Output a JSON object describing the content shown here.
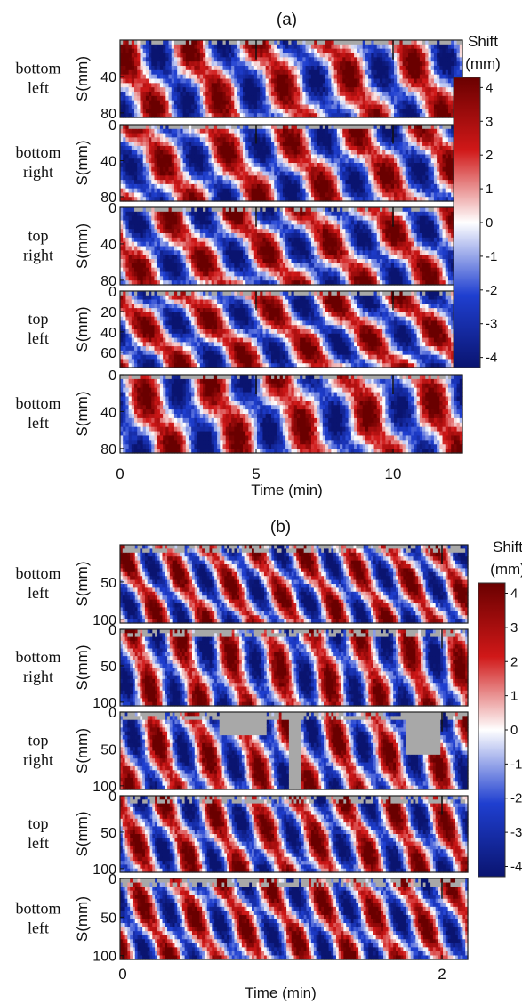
{
  "figure": {
    "panels": [
      {
        "label": "(a)",
        "xlabel": "Time (min)",
        "ylabel": "S(mm)",
        "xticks": [
          "0",
          "5",
          "10"
        ],
        "xlim": [
          0,
          12.5
        ],
        "colorbar": {
          "title_line1": "Shift",
          "title_line2": "(mm)",
          "range": [
            -4.3,
            4.3
          ],
          "ticks": [
            "4",
            "3",
            "2",
            "1",
            "0",
            "-1",
            "-2",
            "-3",
            "-4"
          ]
        },
        "rows": [
          {
            "label1": "bottom",
            "label2": "left",
            "yticks": [
              "40",
              "80"
            ],
            "ylim": [
              0,
              85
            ]
          },
          {
            "label1": "bottom",
            "label2": "right",
            "yticks": [
              "0",
              "40",
              "80"
            ],
            "ylim": [
              0,
              85
            ]
          },
          {
            "label1": "top",
            "label2": "right",
            "yticks": [
              "0",
              "40",
              "80"
            ],
            "ylim": [
              0,
              85
            ]
          },
          {
            "label1": "top",
            "label2": "left",
            "yticks": [
              "0",
              "20",
              "40",
              "60"
            ],
            "ylim": [
              0,
              75
            ]
          },
          {
            "label1": "bottom",
            "label2": "left",
            "yticks": [
              "0",
              "40",
              "80"
            ],
            "ylim": [
              0,
              85
            ]
          }
        ]
      },
      {
        "label": "(b)",
        "xlabel": "Time (min)",
        "ylabel": "S(mm)",
        "xticks": [
          "0",
          "2"
        ],
        "xlim": [
          0,
          2.15
        ],
        "colorbar": {
          "title_line1": "Shift",
          "title_line2": "(mm)",
          "range": [
            -4.3,
            4.3
          ],
          "ticks": [
            "4",
            "3",
            "2",
            "1",
            "0",
            "-1",
            "-2",
            "-3",
            "-4"
          ]
        },
        "rows": [
          {
            "label1": "bottom",
            "label2": "left",
            "yticks": [
              "50",
              "100"
            ],
            "ylim": [
              0,
              105
            ]
          },
          {
            "label1": "bottom",
            "label2": "right",
            "yticks": [
              "0",
              "50",
              "100"
            ],
            "ylim": [
              0,
              105
            ]
          },
          {
            "label1": "top",
            "label2": "right",
            "yticks": [
              "0",
              "50",
              "100"
            ],
            "ylim": [
              0,
              105
            ]
          },
          {
            "label1": "top",
            "label2": "left",
            "yticks": [
              "0",
              "50",
              "100"
            ],
            "ylim": [
              0,
              105
            ]
          },
          {
            "label1": "bottom",
            "label2": "left",
            "yticks": [
              "0",
              "50",
              "100"
            ],
            "ylim": [
              0,
              105
            ]
          }
        ]
      }
    ]
  },
  "chart_data": [
    {
      "type": "heatmap",
      "title": "(a)",
      "xlabel": "Time (min)",
      "ylabel": "S(mm)",
      "xlim": [
        0,
        12.5
      ],
      "x_ticks": [
        0,
        5,
        10
      ],
      "colorbar_label": "Shift (mm)",
      "color_range": [
        -4.3,
        4.3
      ],
      "colormap": [
        "#0a1470",
        "#1f3fd0",
        "#ffffff",
        "#d01818",
        "#6a0000"
      ],
      "subplots": [
        "bottom left",
        "bottom right",
        "top right",
        "top left",
        "bottom left"
      ],
      "missing_data_color": "#a8a8a8",
      "dominant_stripe_period_min": 2.6
    },
    {
      "type": "heatmap",
      "title": "(b)",
      "xlabel": "Time (min)",
      "ylabel": "S(mm)",
      "xlim": [
        0,
        2.15
      ],
      "x_ticks": [
        0,
        2
      ],
      "colorbar_label": "Shift (mm)",
      "color_range": [
        -4.3,
        4.3
      ],
      "colormap": [
        "#0a1470",
        "#1f3fd0",
        "#ffffff",
        "#d01818",
        "#6a0000"
      ],
      "subplots": [
        "bottom left",
        "bottom right",
        "top right",
        "top left",
        "bottom left"
      ],
      "missing_data_color": "#a8a8a8",
      "dominant_stripe_period_min": 0.28
    }
  ]
}
